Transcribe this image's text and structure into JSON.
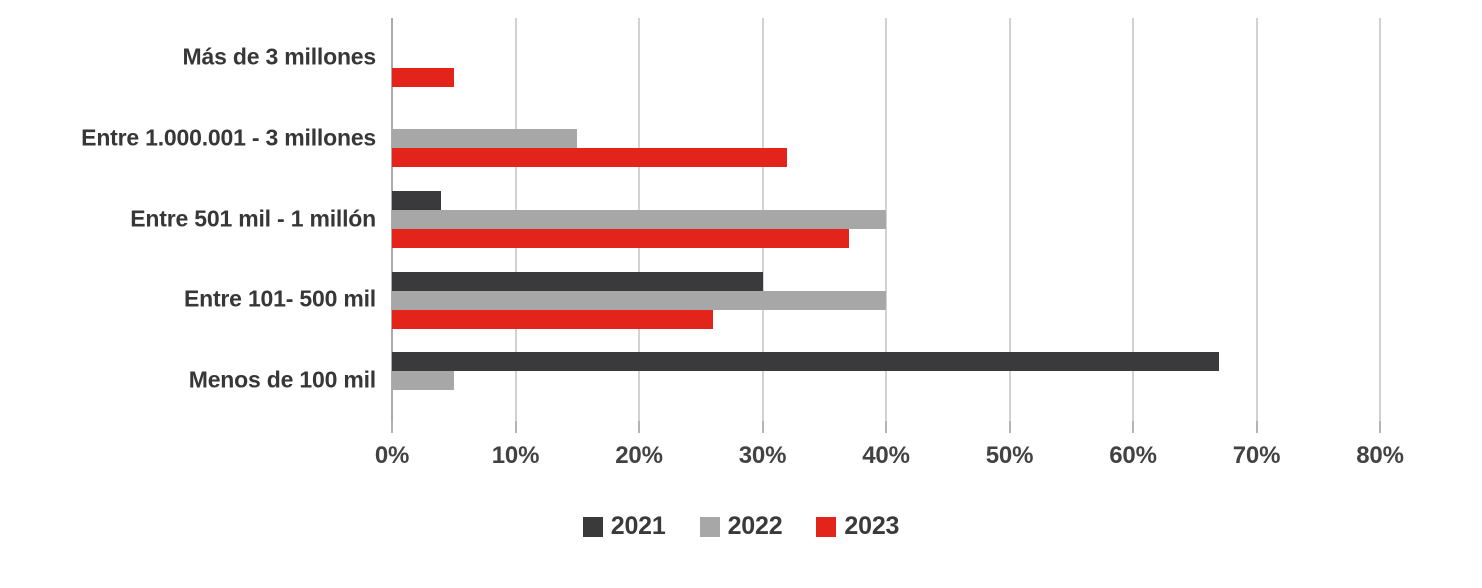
{
  "chart_data": {
    "type": "bar",
    "orientation": "horizontal",
    "title": "",
    "categories": [
      "Más de 3 millones",
      "Entre 1.000.001 - 3 millones",
      "Entre 501 mil - 1 millón",
      "Entre 101- 500 mil",
      "Menos de 100 mil"
    ],
    "series": [
      {
        "name": "2021",
        "color": "#3a3a3c",
        "values": [
          0,
          0,
          4,
          30,
          67
        ]
      },
      {
        "name": "2022",
        "color": "#a7a7a7",
        "values": [
          0,
          15,
          40,
          40,
          5
        ]
      },
      {
        "name": "2023",
        "color": "#e2241b",
        "values": [
          5,
          32,
          37,
          26,
          0
        ]
      }
    ],
    "x_axis": {
      "min": 0,
      "max": 80,
      "tick_step": 10,
      "tick_labels": [
        "0%",
        "10%",
        "20%",
        "30%",
        "40%",
        "50%",
        "60%",
        "70%",
        "80%"
      ]
    },
    "grid": true,
    "legend_position": "bottom",
    "colors": {
      "gridline": "#d2d2d2",
      "zero_line": "#ababab",
      "tick": "#b4b4b4",
      "text": "#3a3a3a"
    }
  }
}
